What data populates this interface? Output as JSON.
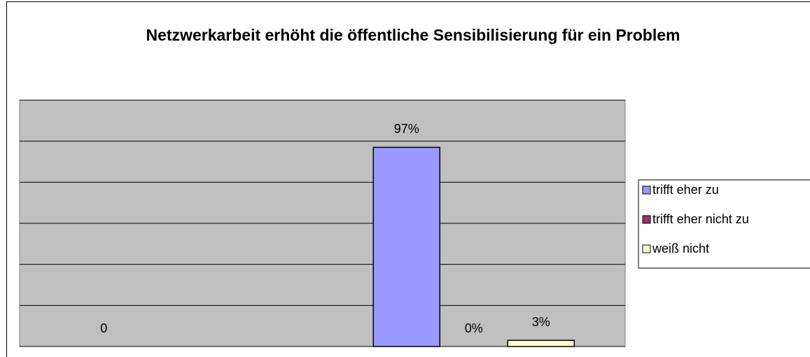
{
  "chart_data": {
    "type": "bar",
    "title": "Netzwerkarbeit erhöht die öffentliche Sensibilisierung für ein Problem",
    "categories": [
      null,
      null
    ],
    "series": [
      {
        "name": "trifft eher zu",
        "color": "#9999ff",
        "values": [
          0,
          97
        ],
        "value_labels": [
          "0",
          "97%"
        ]
      },
      {
        "name": "trifft eher nicht zu",
        "color": "#993366",
        "values": [
          null,
          0
        ],
        "value_labels": [
          null,
          "0%"
        ]
      },
      {
        "name": "weiß nicht",
        "color": "#ffffcc",
        "values": [
          null,
          3
        ],
        "value_labels": [
          null,
          "3%"
        ]
      }
    ],
    "ylim": [
      0,
      120
    ],
    "yticks": [
      0,
      20,
      40,
      60,
      80,
      100,
      120
    ],
    "grid": true,
    "legend": "right",
    "plot_background": "#c0c0c0"
  }
}
